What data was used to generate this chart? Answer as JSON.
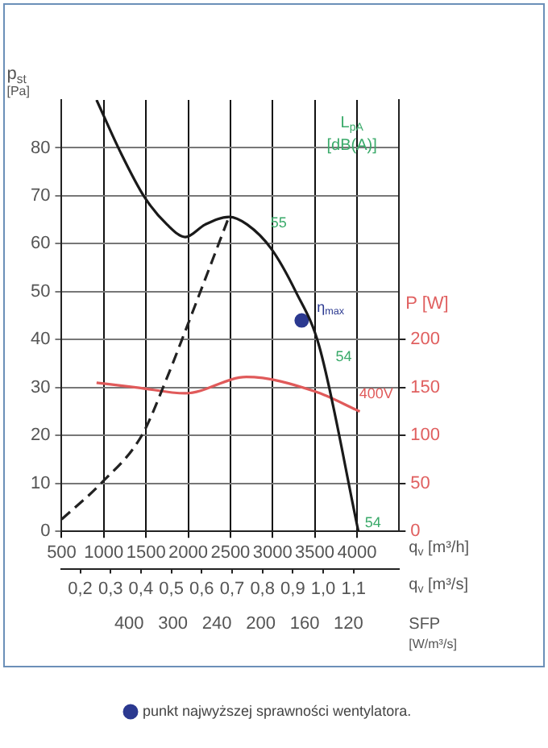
{
  "chart_data": {
    "type": "line",
    "xlabel": "q$_{v}$ [m³/h]",
    "ylabel": "p$_{st}$ [Pa]",
    "y2label": "P [W]",
    "x2label": "q$_{v}$ [m³/s]",
    "xlim": [
      500,
      4500
    ],
    "xticks": [
      500,
      1000,
      1500,
      2000,
      2500,
      3000,
      3500,
      4000
    ],
    "x2lim": [
      0.1389,
      1.25
    ],
    "x2ticks": [
      {
        "value": 0.2,
        "label": "0,2"
      },
      {
        "value": 0.3,
        "label": "0,3"
      },
      {
        "value": 0.4,
        "label": "0,4"
      },
      {
        "value": 0.5,
        "label": "0,5"
      },
      {
        "value": 0.6,
        "label": "0,6"
      },
      {
        "value": 0.7,
        "label": "0,7"
      },
      {
        "value": 0.8,
        "label": "0,8"
      },
      {
        "value": 0.9,
        "label": "0,9"
      },
      {
        "value": 1.0,
        "label": "1,0"
      },
      {
        "value": 1.1,
        "label": "1,1"
      }
    ],
    "ylim": [
      0,
      90
    ],
    "yticks": [
      0,
      10,
      20,
      30,
      40,
      50,
      60,
      70,
      80
    ],
    "y2lim": [
      0,
      450
    ],
    "y2ticks": [
      0,
      50,
      100,
      150,
      200
    ],
    "grid": true,
    "legend": "bottom",
    "marker": "none",
    "series": [
      {
        "color": "#1a1a1a",
        "x": [
          914,
          1200,
          1483,
          1750,
          1966,
          2200,
          2483,
          2700,
          2983,
          3275,
          3550,
          4017
        ],
        "values": [
          90,
          79,
          69.7,
          64,
          61.4,
          64,
          65.6,
          64,
          59,
          50,
          38.8,
          0
        ]
      },
      {
        "color": "#222222",
        "line_style": "dashed",
        "x": [
          500,
          966,
          1450,
          1741,
          1926,
          2483
        ],
        "values": [
          2.5,
          10,
          20,
          31.7,
          40,
          65.6
        ]
      },
      {
        "color": "#e05a5a",
        "axis": "y2",
        "x": [
          914,
          1400,
          1966,
          2690,
          3500,
          4034
        ],
        "values": [
          155,
          150,
          144,
          161,
          146,
          125
        ]
      },
      {
        "type": "scatter",
        "marker": "circle",
        "name": "punkt najwyższej sprawności wentylatora.",
        "color": "#2b3990",
        "x": [
          3345
        ],
        "values": [
          44
        ]
      }
    ],
    "annotations": [
      "L$_{pA}$ [dB(A)]",
      {
        "text": "55",
        "x": 2900,
        "y": 62.6
      },
      {
        "text": "54",
        "x": 3670,
        "y": 34.6
      },
      {
        "text": "54",
        "x": 4017,
        "y": 0
      },
      {
        "text": "η$_{max}$",
        "x": 3450,
        "y": 45
      },
      {
        "text": "400V",
        "x": 3950,
        "y": 27
      },
      "400",
      "300",
      "240",
      "200",
      "160",
      "120",
      "SFP [W/m³/s]"
    ]
  }
}
